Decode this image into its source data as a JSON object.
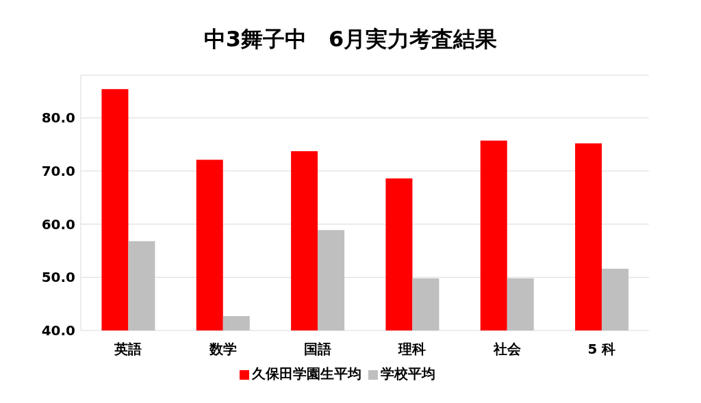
{
  "chart_data": {
    "type": "bar",
    "title": "中3舞子中　6月実力考査結果",
    "categories": [
      "英語",
      "数学",
      "国語",
      "理科",
      "社会",
      "5 科"
    ],
    "series": [
      {
        "name": "久保田学園生平均",
        "color": "#ff0000",
        "values": [
          85.4,
          72.1,
          73.7,
          68.6,
          75.7,
          75.2
        ]
      },
      {
        "name": "学校平均",
        "color": "#bfbfbf",
        "values": [
          56.8,
          42.7,
          58.9,
          49.8,
          49.8,
          51.6
        ]
      }
    ],
    "ylim": [
      40,
      88
    ],
    "yticks": [
      {
        "value": 40,
        "label": "40.0"
      },
      {
        "value": 50,
        "label": "50.0"
      },
      {
        "value": 60,
        "label": "60.0"
      },
      {
        "value": 70,
        "label": "70.0"
      },
      {
        "value": 80,
        "label": "80.0"
      }
    ],
    "grid": "y",
    "legend": "bottom"
  }
}
